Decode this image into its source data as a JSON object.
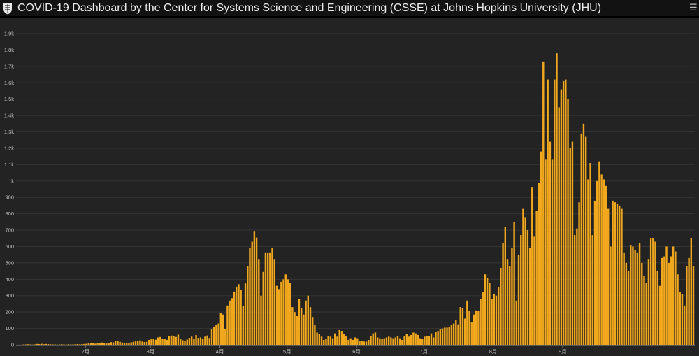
{
  "header": {
    "title": "COVID-19 Dashboard by the Center for Systems Science and Engineering (CSSE) at Johns Hopkins University (JHU)",
    "logo_icon": "jhu-shield-icon",
    "menu_icon": "hamburger-menu-icon"
  },
  "colors": {
    "bar": "#F2A81D",
    "background": "#232323",
    "grid": "#343434",
    "text": "#bdbdbd"
  },
  "chart_data": {
    "type": "bar",
    "title": "",
    "xlabel": "",
    "ylabel": "",
    "ylim": [
      0,
      1900
    ],
    "yticks": [
      0,
      100,
      200,
      300,
      400,
      500,
      600,
      700,
      800,
      900,
      1000,
      1100,
      1200,
      1300,
      1400,
      1500,
      1600,
      1700,
      1800,
      1900
    ],
    "ytick_labels": [
      "0",
      "100",
      "200",
      "300",
      "400",
      "500",
      "600",
      "700",
      "800",
      "900",
      "1k",
      "1.1k",
      "1.2k",
      "1.3k",
      "1.4k",
      "1.5k",
      "1.6k",
      "1.7k",
      "1.8k",
      "1.9k"
    ],
    "month_labels": [
      {
        "label": "2月",
        "day_index": 31
      },
      {
        "label": "3月",
        "day_index": 60
      },
      {
        "label": "4月",
        "day_index": 91
      },
      {
        "label": "5月",
        "day_index": 121
      },
      {
        "label": "6月",
        "day_index": 152
      },
      {
        "label": "7月",
        "day_index": 182
      },
      {
        "label": "8月",
        "day_index": 213
      },
      {
        "label": "9月",
        "day_index": 244
      }
    ],
    "grid": true,
    "legend": "none",
    "values": [
      0,
      0,
      0,
      2,
      2,
      3,
      2,
      1,
      2,
      5,
      4,
      6,
      3,
      5,
      4,
      3,
      2,
      2,
      1,
      2,
      3,
      2,
      1,
      3,
      2,
      2,
      3,
      4,
      3,
      4,
      5,
      6,
      8,
      10,
      12,
      7,
      10,
      11,
      14,
      9,
      8,
      12,
      16,
      15,
      22,
      25,
      18,
      14,
      13,
      10,
      12,
      15,
      18,
      21,
      25,
      27,
      20,
      17,
      18,
      30,
      34,
      37,
      31,
      45,
      48,
      38,
      34,
      30,
      55,
      57,
      55,
      48,
      62,
      38,
      28,
      23,
      32,
      42,
      50,
      35,
      60,
      42,
      45,
      35,
      50,
      57,
      42,
      95,
      110,
      120,
      130,
      195,
      185,
      95,
      240,
      270,
      285,
      325,
      355,
      370,
      335,
      235,
      375,
      480,
      590,
      630,
      695,
      655,
      520,
      300,
      445,
      560,
      560,
      560,
      590,
      520,
      360,
      340,
      385,
      400,
      430,
      400,
      380,
      230,
      200,
      175,
      280,
      225,
      185,
      270,
      300,
      230,
      170,
      120,
      75,
      65,
      50,
      30,
      35,
      55,
      50,
      40,
      70,
      50,
      90,
      85,
      65,
      55,
      30,
      40,
      30,
      45,
      40,
      25,
      25,
      20,
      20,
      30,
      55,
      70,
      75,
      45,
      40,
      35,
      40,
      45,
      50,
      45,
      40,
      45,
      55,
      40,
      30,
      55,
      65,
      50,
      60,
      75,
      70,
      60,
      40,
      35,
      50,
      55,
      55,
      70,
      45,
      80,
      85,
      95,
      100,
      105,
      105,
      110,
      120,
      130,
      150,
      125,
      230,
      225,
      160,
      270,
      205,
      140,
      185,
      210,
      205,
      280,
      320,
      430,
      410,
      380,
      280,
      310,
      300,
      350,
      470,
      620,
      720,
      520,
      480,
      590,
      750,
      270,
      550,
      670,
      830,
      780,
      700,
      590,
      960,
      660,
      820,
      990,
      1180,
      1730,
      1130,
      1620,
      1240,
      1130,
      1620,
      1780,
      1450,
      1560,
      1610,
      1620,
      1500,
      1200,
      1240,
      670,
      710,
      870,
      1290,
      1350,
      1270,
      1010,
      1110,
      670,
      880,
      1000,
      1120,
      1040,
      1010,
      970,
      830,
      600,
      880,
      870,
      860,
      850,
      830,
      560,
      500,
      450,
      610,
      600,
      580,
      560,
      620,
      500,
      420,
      380,
      520,
      650,
      650,
      630,
      450,
      360,
      530,
      540,
      600,
      500,
      540,
      600,
      570,
      430,
      320,
      310,
      240,
      480,
      530,
      650,
      480
    ]
  }
}
